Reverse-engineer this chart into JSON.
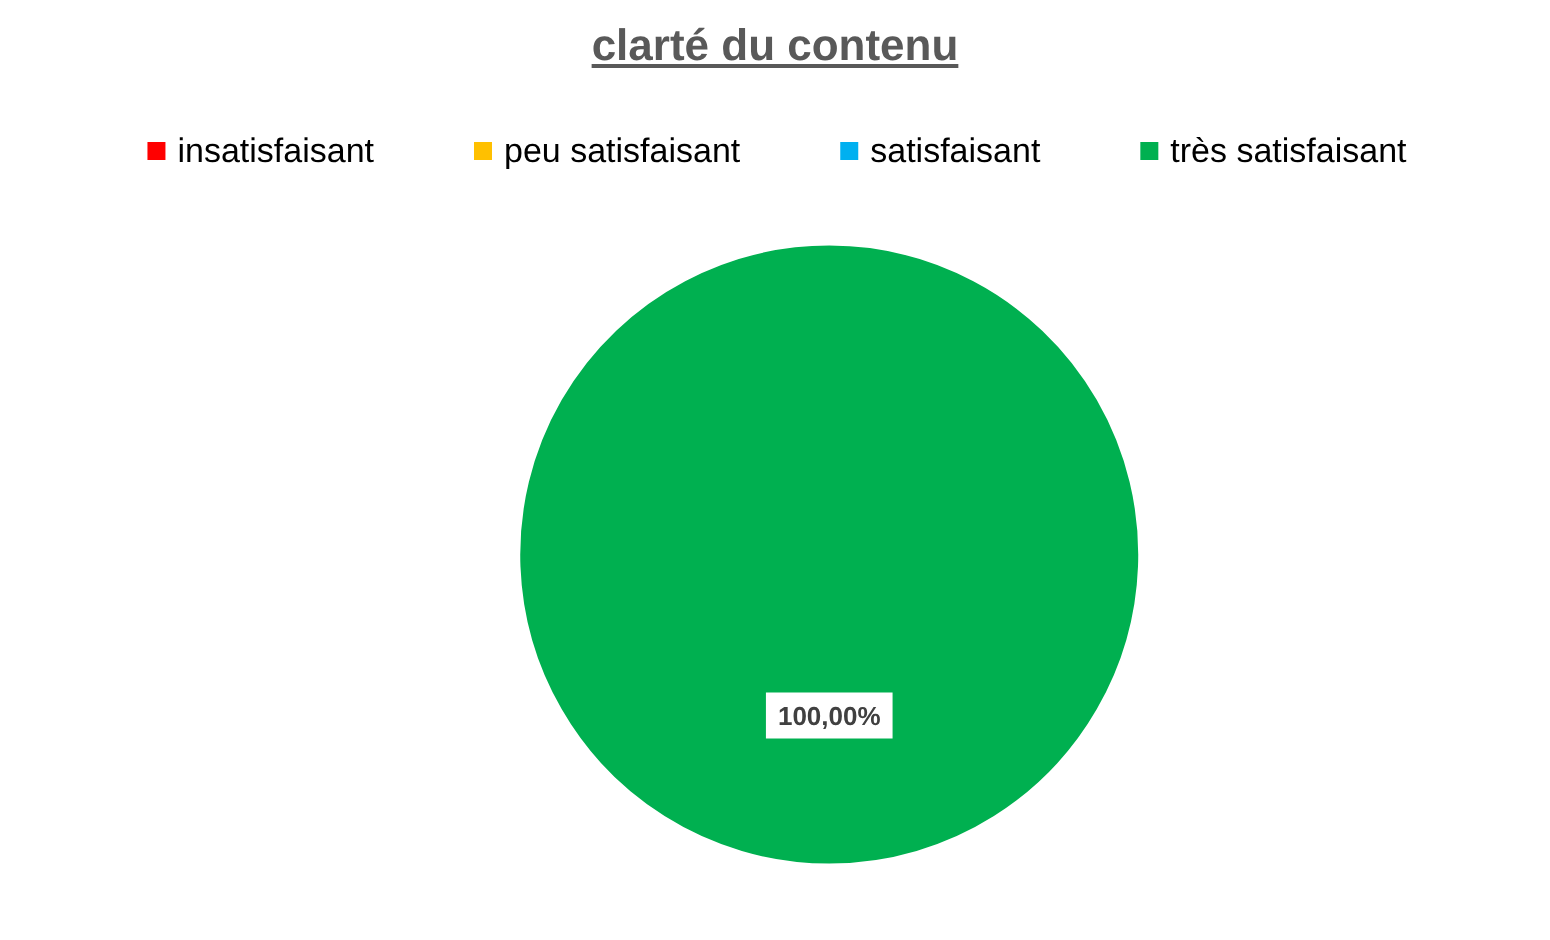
{
  "chart_data": {
    "type": "pie",
    "title": "clarté du contenu",
    "categories": [
      "insatisfaisant",
      "peu satisfaisant",
      "satisfaisant",
      "très satisfaisant"
    ],
    "values": [
      0,
      0,
      0,
      100
    ],
    "colors": [
      "#ff0000",
      "#ffc000",
      "#00b0f0",
      "#00b050"
    ],
    "value_labels": [
      null,
      null,
      null,
      "100,00%"
    ],
    "legend": "top"
  }
}
